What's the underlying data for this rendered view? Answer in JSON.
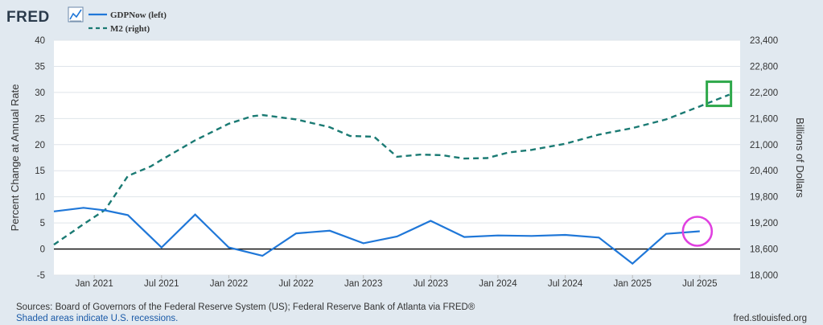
{
  "brand": {
    "logo": "FRED",
    "icon": "line-chart-icon"
  },
  "legend": [
    {
      "label": "GDPNow (left)",
      "style": "solid",
      "color": "#1f77d8"
    },
    {
      "label": "M2 (right)",
      "style": "dashed",
      "color": "#1a7a73"
    }
  ],
  "footer": {
    "sources": "Sources: Board of Governors of the Federal Reserve System (US); Federal Reserve Bank of Atlanta via FRED®",
    "recessions_note": "Shaded areas indicate U.S. recessions.",
    "site": "fred.stlouisfed.org"
  },
  "colors": {
    "background": "#e1e9f0",
    "plot_bg": "#ffffff",
    "grid": "#dfe4ea",
    "gdpnow": "#1f77d8",
    "m2": "#1a7a73",
    "highlight_box": "#2ea84a",
    "highlight_circle": "#e040e0",
    "zero_line": "#000000"
  },
  "chart_data": {
    "type": "line",
    "x_unit": "years since Jan 2021",
    "xlim": [
      -0.3,
      4.8
    ],
    "x_ticks": [
      {
        "label": "Jan 2021",
        "x": 0.0
      },
      {
        "label": "Jul 2021",
        "x": 0.5
      },
      {
        "label": "Jan 2022",
        "x": 1.0
      },
      {
        "label": "Jul 2022",
        "x": 1.5
      },
      {
        "label": "Jan 2023",
        "x": 2.0
      },
      {
        "label": "Jul 2023",
        "x": 2.5
      },
      {
        "label": "Jan 2024",
        "x": 3.0
      },
      {
        "label": "Jul 2024",
        "x": 3.5
      },
      {
        "label": "Jan 2025",
        "x": 4.0
      },
      {
        "label": "Jul 2025",
        "x": 4.5
      }
    ],
    "left_axis": {
      "label": "Percent Change at Annual Rate",
      "ylim": [
        -5,
        40
      ],
      "ticks": [
        -5,
        0,
        5,
        10,
        15,
        20,
        25,
        30,
        35,
        40
      ],
      "tick_labels": [
        "-5",
        "0",
        "5",
        "10",
        "15",
        "20",
        "25",
        "30",
        "35",
        "40"
      ]
    },
    "right_axis": {
      "label": "Billions of Dollars",
      "ylim": [
        18000,
        23400
      ],
      "ticks": [
        18000,
        18600,
        19200,
        19800,
        20400,
        21000,
        21600,
        22200,
        22800,
        23400
      ],
      "tick_labels": [
        "18,000",
        "18,600",
        "19,200",
        "19,800",
        "20,400",
        "21,000",
        "21,600",
        "22,200",
        "22,800",
        "23,400"
      ]
    },
    "series": [
      {
        "name": "GDPNow (left)",
        "axis": "left",
        "style": "solid",
        "points": [
          [
            -0.3,
            7.2
          ],
          [
            -0.08,
            7.9
          ],
          [
            0.08,
            7.4
          ],
          [
            0.25,
            6.5
          ],
          [
            0.5,
            0.3
          ],
          [
            0.75,
            6.6
          ],
          [
            1.0,
            0.3
          ],
          [
            1.25,
            -1.3
          ],
          [
            1.5,
            3.0
          ],
          [
            1.75,
            3.5
          ],
          [
            2.0,
            1.1
          ],
          [
            2.25,
            2.4
          ],
          [
            2.5,
            5.4
          ],
          [
            2.75,
            2.3
          ],
          [
            3.0,
            2.6
          ],
          [
            3.25,
            2.5
          ],
          [
            3.5,
            2.7
          ],
          [
            3.75,
            2.2
          ],
          [
            4.0,
            -2.8
          ],
          [
            4.25,
            2.9
          ],
          [
            4.5,
            3.4
          ]
        ]
      },
      {
        "name": "M2 (right)",
        "axis": "right",
        "style": "dashed",
        "points": [
          [
            -0.3,
            18700
          ],
          [
            -0.08,
            19170
          ],
          [
            0.08,
            19500
          ],
          [
            0.25,
            20280
          ],
          [
            0.42,
            20500
          ],
          [
            0.5,
            20650
          ],
          [
            0.75,
            21100
          ],
          [
            1.0,
            21480
          ],
          [
            1.17,
            21650
          ],
          [
            1.25,
            21680
          ],
          [
            1.5,
            21580
          ],
          [
            1.75,
            21400
          ],
          [
            1.9,
            21200
          ],
          [
            2.08,
            21180
          ],
          [
            2.25,
            20720
          ],
          [
            2.42,
            20770
          ],
          [
            2.58,
            20760
          ],
          [
            2.75,
            20680
          ],
          [
            2.92,
            20690
          ],
          [
            3.08,
            20820
          ],
          [
            3.25,
            20880
          ],
          [
            3.5,
            21020
          ],
          [
            3.75,
            21230
          ],
          [
            4.0,
            21380
          ],
          [
            4.25,
            21580
          ],
          [
            4.5,
            21880
          ],
          [
            4.72,
            22150
          ]
        ]
      }
    ],
    "annotations": [
      {
        "type": "box",
        "target": "M2 latest value",
        "at": [
          4.72,
          22150
        ]
      },
      {
        "type": "circle",
        "target": "GDPNow latest value",
        "at": [
          4.5,
          3.4
        ]
      }
    ]
  }
}
